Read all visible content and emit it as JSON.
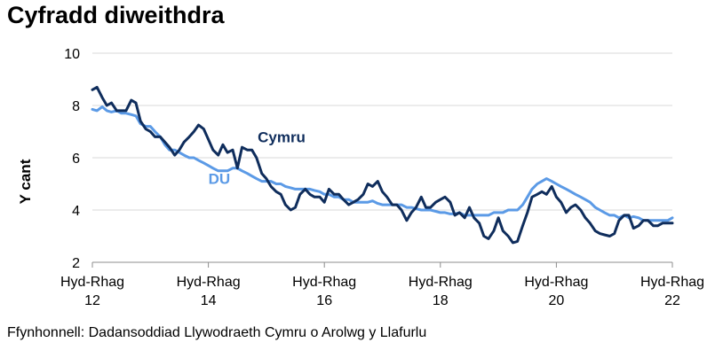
{
  "chart_data": {
    "type": "line",
    "title": "Cyfradd diweithdra",
    "source": "Ffynhonnell: Dadansoddiad Llywodraeth Cymru o Arolwg y Llafurlu",
    "ylabel": "Y cant",
    "xlabel": "",
    "ylim": [
      2,
      10
    ],
    "yticks": [
      2,
      4,
      6,
      8,
      10
    ],
    "grid": true,
    "xlim": [
      2012.75,
      2022.75
    ],
    "xticks": [
      {
        "x": 2012.75,
        "line1": "Hyd-Rhag",
        "line2": "12"
      },
      {
        "x": 2014.75,
        "line1": "Hyd-Rhag",
        "line2": "14"
      },
      {
        "x": 2016.75,
        "line1": "Hyd-Rhag",
        "line2": "16"
      },
      {
        "x": 2018.75,
        "line1": "Hyd-Rhag",
        "line2": "18"
      },
      {
        "x": 2020.75,
        "line1": "Hyd-Rhag",
        "line2": "20"
      },
      {
        "x": 2022.75,
        "line1": "Hyd-Rhag",
        "line2": "22"
      }
    ],
    "series": [
      {
        "name": "Cymru",
        "color": "#0f2d5c",
        "label_at": [
          2015.6,
          6.6
        ],
        "x": [
          2012.75,
          2012.83,
          2012.92,
          2013.0,
          2013.08,
          2013.17,
          2013.25,
          2013.33,
          2013.42,
          2013.5,
          2013.58,
          2013.67,
          2013.75,
          2013.83,
          2013.92,
          2014.0,
          2014.08,
          2014.17,
          2014.25,
          2014.33,
          2014.42,
          2014.5,
          2014.58,
          2014.67,
          2014.75,
          2014.83,
          2014.92,
          2015.0,
          2015.08,
          2015.17,
          2015.25,
          2015.33,
          2015.42,
          2015.5,
          2015.58,
          2015.67,
          2015.75,
          2015.83,
          2015.92,
          2016.0,
          2016.08,
          2016.17,
          2016.25,
          2016.33,
          2016.42,
          2016.5,
          2016.58,
          2016.67,
          2016.75,
          2016.83,
          2016.92,
          2017.0,
          2017.08,
          2017.17,
          2017.25,
          2017.33,
          2017.42,
          2017.5,
          2017.58,
          2017.67,
          2017.75,
          2017.83,
          2017.92,
          2018.0,
          2018.08,
          2018.17,
          2018.25,
          2018.33,
          2018.42,
          2018.5,
          2018.58,
          2018.67,
          2018.75,
          2018.83,
          2018.92,
          2019.0,
          2019.08,
          2019.17,
          2019.25,
          2019.33,
          2019.42,
          2019.5,
          2019.58,
          2019.67,
          2019.75,
          2019.83,
          2019.92,
          2020.0,
          2020.08,
          2020.17,
          2020.25,
          2020.33,
          2020.42,
          2020.5,
          2020.58,
          2020.67,
          2020.75,
          2020.83,
          2020.92,
          2021.0,
          2021.08,
          2021.17,
          2021.25,
          2021.33,
          2021.42,
          2021.5,
          2021.58,
          2021.67,
          2021.75,
          2021.83,
          2021.92,
          2022.0,
          2022.08,
          2022.17,
          2022.25,
          2022.33,
          2022.42,
          2022.5,
          2022.58,
          2022.67,
          2022.75
        ],
        "y": [
          8.6,
          8.7,
          8.3,
          8.0,
          8.1,
          7.8,
          7.8,
          7.8,
          8.2,
          8.1,
          7.4,
          7.1,
          7.0,
          6.8,
          6.8,
          6.6,
          6.4,
          6.1,
          6.3,
          6.6,
          6.8,
          7.0,
          7.25,
          7.1,
          6.7,
          6.3,
          6.1,
          6.5,
          6.2,
          6.3,
          5.6,
          6.4,
          6.3,
          6.3,
          6.0,
          5.4,
          5.2,
          4.9,
          4.7,
          4.6,
          4.2,
          4.0,
          4.1,
          4.6,
          4.8,
          4.6,
          4.5,
          4.5,
          4.3,
          4.8,
          4.6,
          4.6,
          4.4,
          4.2,
          4.3,
          4.4,
          4.6,
          5.0,
          4.9,
          5.1,
          4.7,
          4.5,
          4.2,
          4.2,
          4.0,
          3.6,
          3.9,
          4.1,
          4.5,
          4.1,
          4.1,
          4.3,
          4.4,
          4.5,
          4.3,
          3.8,
          3.9,
          3.7,
          4.1,
          3.7,
          3.5,
          3.0,
          2.9,
          3.2,
          3.7,
          3.2,
          3.0,
          2.75,
          2.8,
          3.4,
          3.9,
          4.5,
          4.6,
          4.7,
          4.6,
          4.9,
          4.5,
          4.3,
          3.9,
          4.1,
          4.2,
          4.0,
          3.7,
          3.5,
          3.2,
          3.1,
          3.05,
          3.0,
          3.1,
          3.6,
          3.8,
          3.8,
          3.3,
          3.4,
          3.6,
          3.6,
          3.4,
          3.4,
          3.5,
          3.5,
          3.5
        ]
      },
      {
        "name": "DU",
        "color": "#5b9ae6",
        "label_at": [
          2014.75,
          5.0
        ],
        "x": [
          2012.75,
          2012.83,
          2012.92,
          2013.0,
          2013.08,
          2013.17,
          2013.25,
          2013.33,
          2013.42,
          2013.5,
          2013.58,
          2013.67,
          2013.75,
          2013.83,
          2013.92,
          2014.0,
          2014.08,
          2014.17,
          2014.25,
          2014.33,
          2014.42,
          2014.5,
          2014.58,
          2014.67,
          2014.75,
          2014.83,
          2014.92,
          2015.0,
          2015.08,
          2015.17,
          2015.25,
          2015.33,
          2015.42,
          2015.5,
          2015.58,
          2015.67,
          2015.75,
          2015.83,
          2015.92,
          2016.0,
          2016.08,
          2016.17,
          2016.25,
          2016.33,
          2016.42,
          2016.5,
          2016.58,
          2016.67,
          2016.75,
          2016.83,
          2016.92,
          2017.0,
          2017.08,
          2017.17,
          2017.25,
          2017.33,
          2017.42,
          2017.5,
          2017.58,
          2017.67,
          2017.75,
          2017.83,
          2017.92,
          2018.0,
          2018.08,
          2018.17,
          2018.25,
          2018.33,
          2018.42,
          2018.5,
          2018.58,
          2018.67,
          2018.75,
          2018.83,
          2018.92,
          2019.0,
          2019.08,
          2019.17,
          2019.25,
          2019.33,
          2019.42,
          2019.5,
          2019.58,
          2019.67,
          2019.75,
          2019.83,
          2019.92,
          2020.0,
          2020.08,
          2020.17,
          2020.25,
          2020.33,
          2020.42,
          2020.5,
          2020.58,
          2020.67,
          2020.75,
          2020.83,
          2020.92,
          2021.0,
          2021.08,
          2021.17,
          2021.25,
          2021.33,
          2021.42,
          2021.5,
          2021.58,
          2021.67,
          2021.75,
          2021.83,
          2021.92,
          2022.0,
          2022.08,
          2022.17,
          2022.25,
          2022.33,
          2022.42,
          2022.5,
          2022.58,
          2022.67,
          2022.75
        ],
        "y": [
          7.85,
          7.8,
          7.95,
          7.8,
          7.75,
          7.8,
          7.7,
          7.7,
          7.65,
          7.6,
          7.3,
          7.2,
          7.2,
          7.0,
          6.8,
          6.5,
          6.3,
          6.3,
          6.2,
          6.1,
          6.0,
          6.0,
          5.9,
          5.8,
          5.7,
          5.6,
          5.5,
          5.5,
          5.5,
          5.6,
          5.6,
          5.5,
          5.4,
          5.3,
          5.2,
          5.1,
          5.1,
          5.1,
          5.0,
          5.0,
          4.9,
          4.85,
          4.8,
          4.8,
          4.8,
          4.8,
          4.75,
          4.7,
          4.6,
          4.6,
          4.5,
          4.5,
          4.4,
          4.4,
          4.3,
          4.3,
          4.3,
          4.3,
          4.35,
          4.25,
          4.2,
          4.2,
          4.2,
          4.2,
          4.2,
          4.1,
          4.1,
          4.05,
          4.0,
          4.0,
          4.0,
          3.95,
          3.9,
          3.9,
          3.85,
          3.85,
          3.9,
          3.8,
          3.8,
          3.8,
          3.8,
          3.8,
          3.8,
          3.9,
          3.9,
          3.9,
          4.0,
          4.0,
          4.0,
          4.2,
          4.5,
          4.8,
          5.0,
          5.1,
          5.2,
          5.1,
          5.0,
          4.9,
          4.8,
          4.7,
          4.6,
          4.5,
          4.4,
          4.3,
          4.1,
          4.0,
          3.9,
          3.8,
          3.8,
          3.7,
          3.8,
          3.7,
          3.75,
          3.7,
          3.6,
          3.6,
          3.6,
          3.6,
          3.6,
          3.6,
          3.7
        ]
      }
    ]
  }
}
